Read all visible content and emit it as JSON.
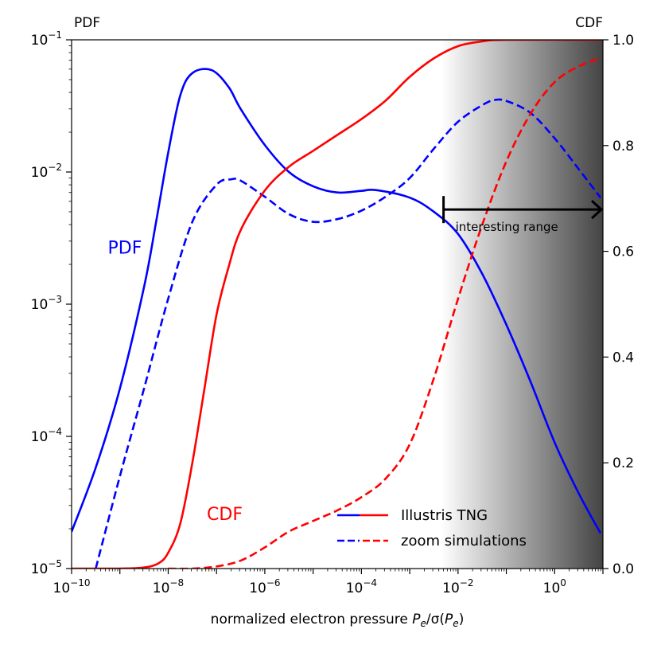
{
  "chart_data": {
    "type": "line",
    "xlabel": "normalized electron pressure P_e/σ(P_e)",
    "xlabel_parts": {
      "prefix": "normalized electron pressure ",
      "P": "P",
      "sub_e": "e",
      "slash_sigma": "/σ(",
      "close": ")"
    },
    "y_left_label": "PDF",
    "y_right_label": "CDF",
    "x_scale": "log",
    "y_left_scale": "log",
    "y_right_scale": "linear",
    "xlim": [
      1e-10,
      10
    ],
    "y_left_lim": [
      1e-05,
      0.1
    ],
    "y_right_lim": [
      0.0,
      1.0
    ],
    "x_ticks": [
      {
        "value": 1e-10,
        "base": "10",
        "exp": "−10"
      },
      {
        "value": 1e-08,
        "base": "10",
        "exp": "−8"
      },
      {
        "value": 1e-06,
        "base": "10",
        "exp": "−6"
      },
      {
        "value": 0.0001,
        "base": "10",
        "exp": "−4"
      },
      {
        "value": 0.01,
        "base": "10",
        "exp": "−2"
      },
      {
        "value": 1,
        "base": "10",
        "exp": "0"
      }
    ],
    "y_left_ticks": [
      {
        "value": 1e-05,
        "base": "10",
        "exp": "−5"
      },
      {
        "value": 0.0001,
        "base": "10",
        "exp": "−4"
      },
      {
        "value": 0.001,
        "base": "10",
        "exp": "−3"
      },
      {
        "value": 0.01,
        "base": "10",
        "exp": "−2"
      },
      {
        "value": 0.1,
        "base": "10",
        "exp": "−1"
      }
    ],
    "y_right_ticks": [
      {
        "value": 0.0,
        "label": "0.0"
      },
      {
        "value": 0.2,
        "label": "0.2"
      },
      {
        "value": 0.4,
        "label": "0.4"
      },
      {
        "value": 0.6,
        "label": "0.6"
      },
      {
        "value": 0.8,
        "label": "0.8"
      },
      {
        "value": 1.0,
        "label": "1.0"
      }
    ],
    "series": [
      {
        "name": "Illustris TNG",
        "quantity": "PDF",
        "axis": "left",
        "color": "#0000ff",
        "dash": "solid",
        "points": [
          [
            -10.0,
            1.9e-05
          ],
          [
            -9.5,
            5.8e-05
          ],
          [
            -9.0,
            0.00023
          ],
          [
            -8.5,
            0.00135
          ],
          [
            -8.25,
            0.0042
          ],
          [
            -8.0,
            0.014
          ],
          [
            -7.75,
            0.038
          ],
          [
            -7.5,
            0.056
          ],
          [
            -7.1,
            0.059
          ],
          [
            -6.75,
            0.044
          ],
          [
            -6.5,
            0.03
          ],
          [
            -6.0,
            0.016
          ],
          [
            -5.5,
            0.01
          ],
          [
            -5.0,
            0.0078
          ],
          [
            -4.5,
            0.007
          ],
          [
            -4.0,
            0.0072
          ],
          [
            -3.7,
            0.0073
          ],
          [
            -3.0,
            0.0064
          ],
          [
            -2.5,
            0.005
          ],
          [
            -2.0,
            0.0034
          ],
          [
            -1.5,
            0.0017
          ],
          [
            -1.0,
            0.0007
          ],
          [
            -0.5,
            0.00026
          ],
          [
            0.0,
            9e-05
          ],
          [
            0.5,
            3.7e-05
          ],
          [
            0.95,
            1.85e-05
          ]
        ]
      },
      {
        "name": "zoom simulations",
        "quantity": "PDF",
        "axis": "left",
        "color": "#0000ff",
        "dash": "dashed",
        "points": [
          [
            -9.5,
            1e-05
          ],
          [
            -9.0,
            5e-05
          ],
          [
            -8.5,
            0.00023
          ],
          [
            -8.0,
            0.0011
          ],
          [
            -7.5,
            0.0042
          ],
          [
            -7.0,
            0.008
          ],
          [
            -6.7,
            0.0088
          ],
          [
            -6.5,
            0.0086
          ],
          [
            -6.0,
            0.0065
          ],
          [
            -5.5,
            0.0048
          ],
          [
            -5.0,
            0.0042
          ],
          [
            -4.5,
            0.0044
          ],
          [
            -4.0,
            0.0051
          ],
          [
            -3.5,
            0.0065
          ],
          [
            -3.0,
            0.009
          ],
          [
            -2.5,
            0.015
          ],
          [
            -2.0,
            0.024
          ],
          [
            -1.5,
            0.032
          ],
          [
            -1.25,
            0.035
          ],
          [
            -1.0,
            0.0345
          ],
          [
            -0.5,
            0.028
          ],
          [
            0.0,
            0.018
          ],
          [
            0.5,
            0.0105
          ],
          [
            0.95,
            0.0064
          ]
        ]
      },
      {
        "name": "Illustris TNG",
        "quantity": "CDF",
        "axis": "right",
        "color": "#ff0000",
        "dash": "solid",
        "points": [
          [
            -10.0,
            0.0
          ],
          [
            -9.0,
            0.0
          ],
          [
            -8.5,
            0.002
          ],
          [
            -8.2,
            0.01
          ],
          [
            -8.0,
            0.03
          ],
          [
            -7.75,
            0.085
          ],
          [
            -7.5,
            0.2
          ],
          [
            -7.25,
            0.34
          ],
          [
            -7.0,
            0.48
          ],
          [
            -6.75,
            0.57
          ],
          [
            -6.5,
            0.64
          ],
          [
            -6.0,
            0.715
          ],
          [
            -5.5,
            0.76
          ],
          [
            -5.0,
            0.79
          ],
          [
            -4.5,
            0.82
          ],
          [
            -4.0,
            0.85
          ],
          [
            -3.5,
            0.885
          ],
          [
            -3.0,
            0.93
          ],
          [
            -2.5,
            0.965
          ],
          [
            -2.0,
            0.988
          ],
          [
            -1.5,
            0.997
          ],
          [
            -1.0,
            1.0
          ],
          [
            0.95,
            1.0
          ]
        ]
      },
      {
        "name": "zoom simulations",
        "quantity": "CDF",
        "axis": "right",
        "color": "#ff0000",
        "dash": "dashed",
        "points": [
          [
            -8.0,
            0.0
          ],
          [
            -7.5,
            0.0
          ],
          [
            -7.0,
            0.004
          ],
          [
            -6.5,
            0.015
          ],
          [
            -6.0,
            0.04
          ],
          [
            -5.5,
            0.07
          ],
          [
            -5.0,
            0.09
          ],
          [
            -4.5,
            0.11
          ],
          [
            -4.0,
            0.135
          ],
          [
            -3.5,
            0.17
          ],
          [
            -3.0,
            0.235
          ],
          [
            -2.5,
            0.36
          ],
          [
            -2.0,
            0.51
          ],
          [
            -1.5,
            0.65
          ],
          [
            -1.0,
            0.77
          ],
          [
            -0.5,
            0.86
          ],
          [
            0.0,
            0.92
          ],
          [
            0.5,
            0.95
          ],
          [
            0.95,
            0.965
          ]
        ]
      }
    ],
    "annotations": [
      {
        "text": "PDF",
        "color": "#0000ff",
        "x": -9.25,
        "y_left": 0.0027
      },
      {
        "text": "CDF",
        "color": "#ff0000",
        "x": -7.2,
        "y_left": 2.6e-05
      }
    ],
    "range_marker": {
      "label": "interesting range",
      "x_start": -2.3,
      "x_end": 1.0,
      "y_left": 0.0052,
      "color": "#000000"
    },
    "shaded_region": {
      "x_start": -2.35,
      "x_end": 1.0,
      "color_start": "#ffffff",
      "color_end": "#444444"
    },
    "legend": {
      "placement": "bottom-center",
      "entries": [
        {
          "label": "Illustris TNG",
          "dash": "solid"
        },
        {
          "label": "zoom simulations",
          "dash": "dashed"
        }
      ],
      "colors": [
        "#0000ff",
        "#ff0000"
      ]
    },
    "grid": false
  }
}
